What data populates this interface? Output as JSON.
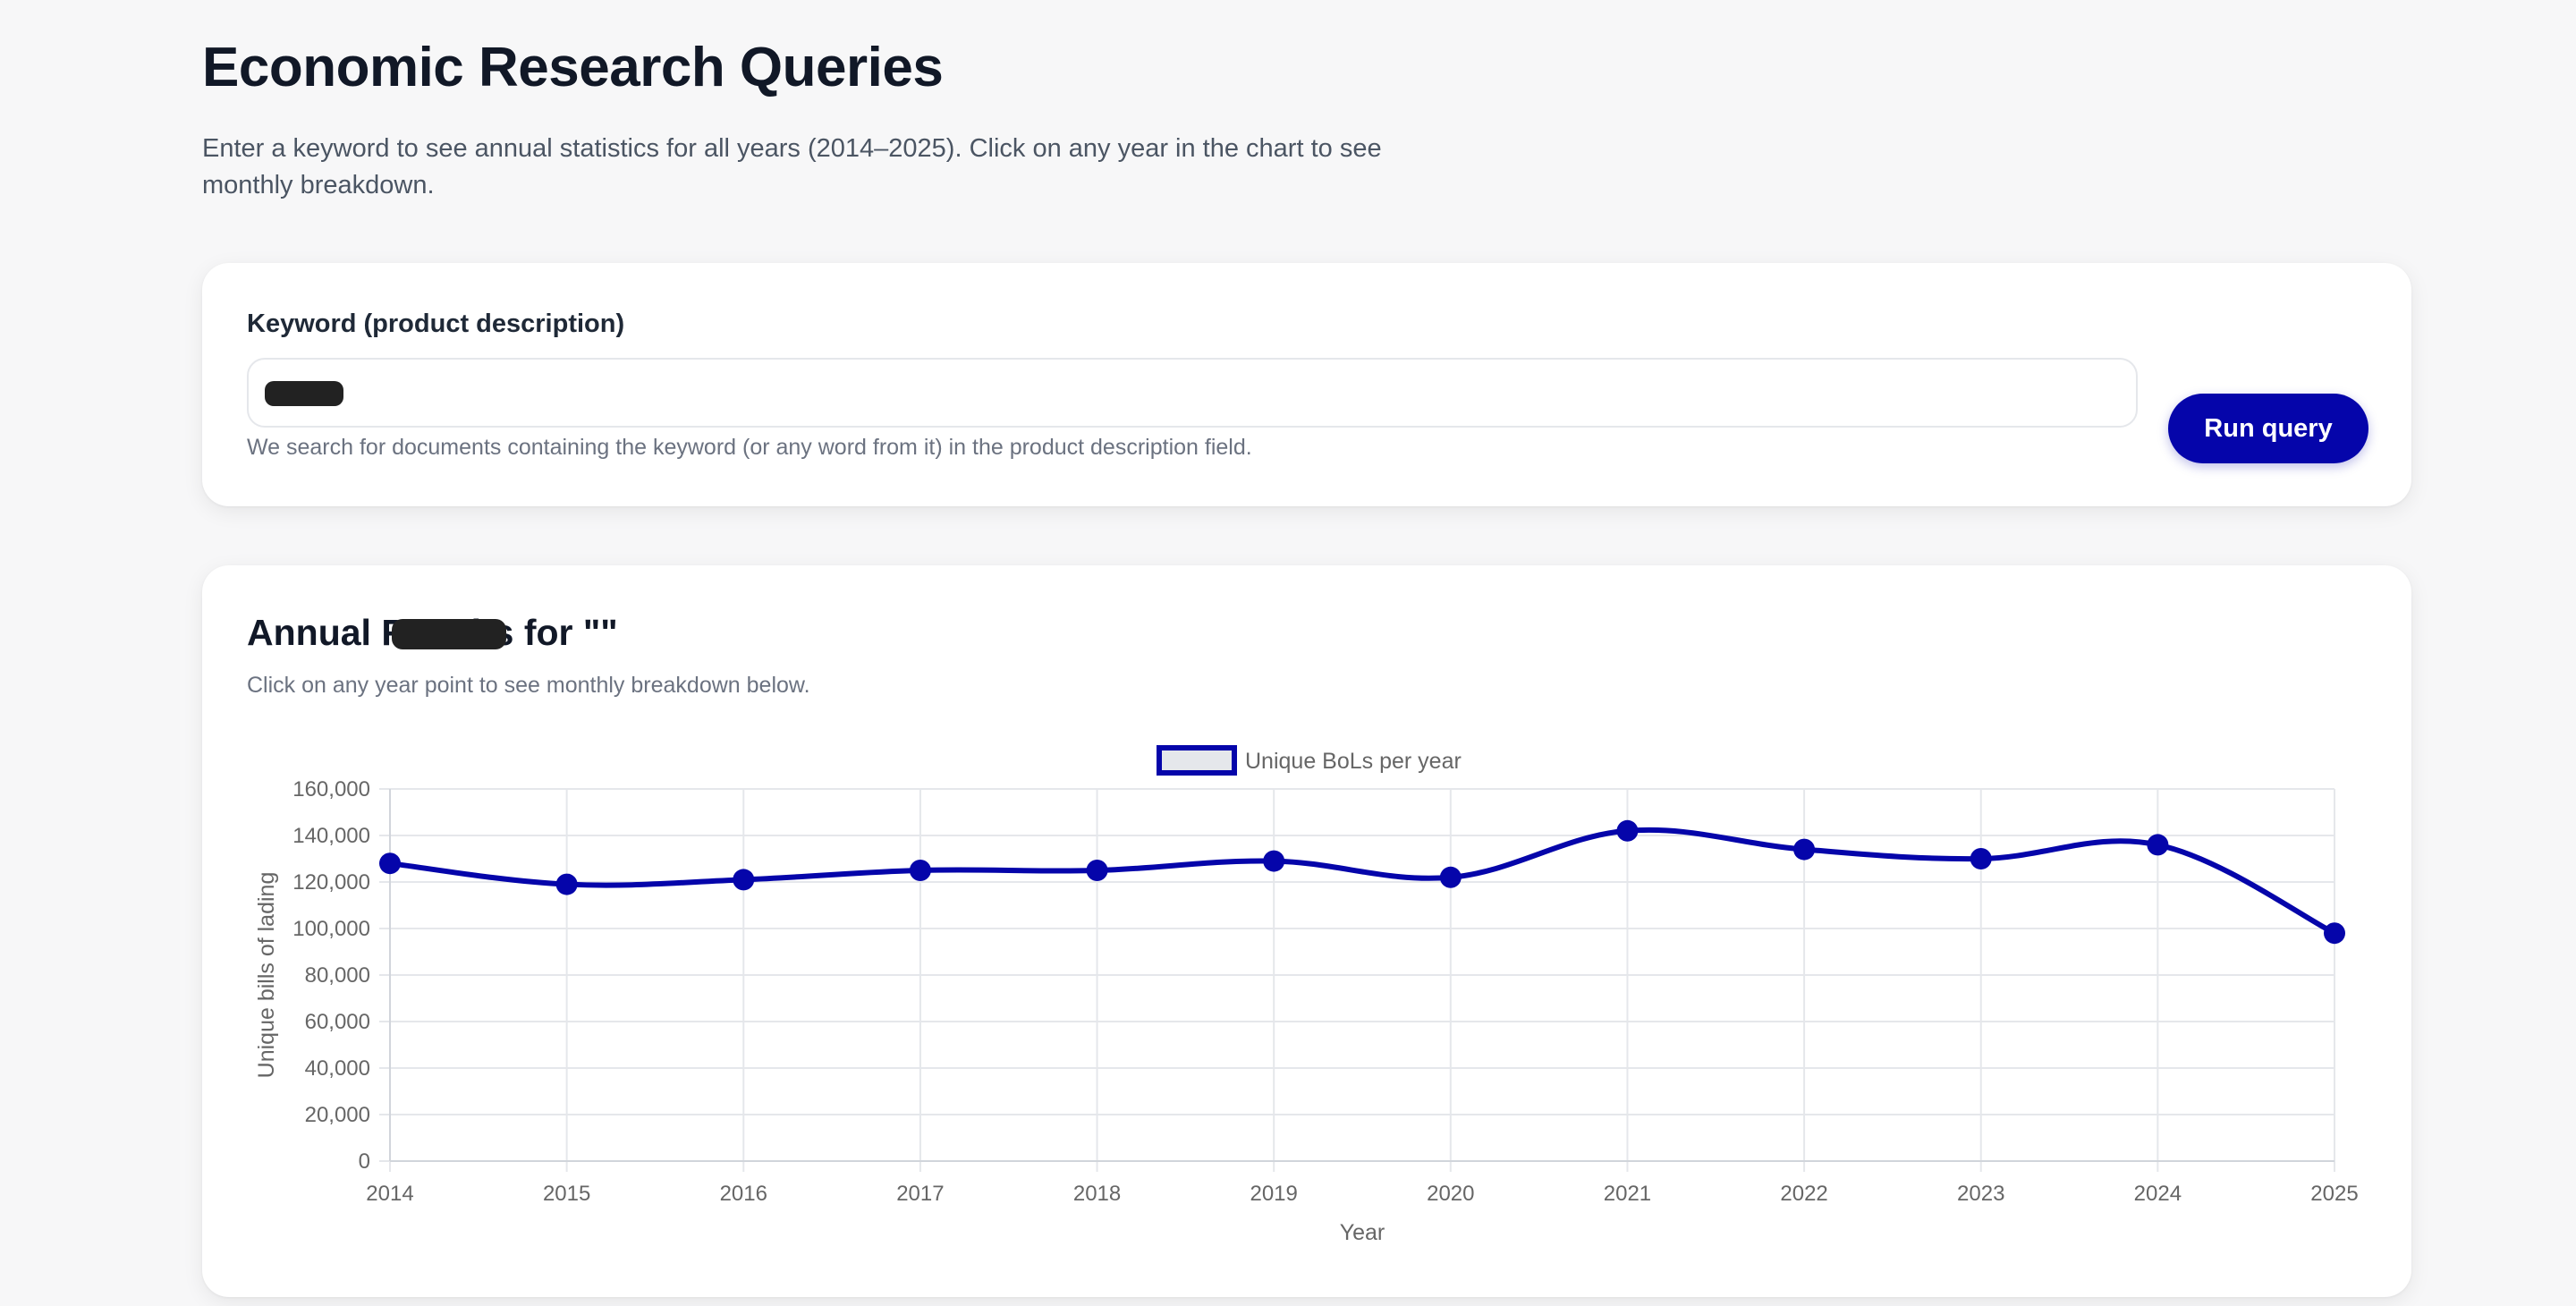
{
  "header": {
    "title": "Economic Research Queries",
    "description": "Enter a keyword to see annual statistics for all years (2014–2025). Click on any year in the chart to see monthly breakdown."
  },
  "query_form": {
    "label": "Keyword (product description)",
    "input_value": "",
    "hint": "We search for documents containing the keyword (or any word from it) in the product description field.",
    "button_label": "Run query"
  },
  "results": {
    "title": "Annual Results for \"\"",
    "subtitle": "Click on any year point to see monthly breakdown below."
  },
  "colors": {
    "accent": "#0505aa",
    "legend_fill": "#e5e7eb",
    "grid": "#e5e7eb",
    "axis_text": "#666666"
  },
  "chart_data": {
    "type": "line",
    "x": [
      "2014",
      "2015",
      "2016",
      "2017",
      "2018",
      "2019",
      "2020",
      "2021",
      "2022",
      "2023",
      "2024",
      "2025"
    ],
    "series": [
      {
        "name": "Unique BoLs per year",
        "values": [
          128000,
          119000,
          121000,
          125000,
          125000,
          129000,
          122000,
          142000,
          134000,
          130000,
          136000,
          98000
        ]
      }
    ],
    "xlabel": "Year",
    "ylabel": "Unique bills of lading",
    "ylim": [
      0,
      160000
    ],
    "yticks": [
      "0",
      "20,000",
      "40,000",
      "60,000",
      "80,000",
      "100,000",
      "120,000",
      "140,000",
      "160,000"
    ],
    "grid": true,
    "legend": "top-center"
  }
}
